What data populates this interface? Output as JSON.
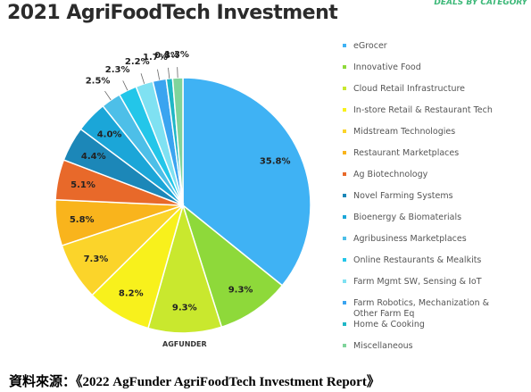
{
  "chart_data": {
    "type": "pie",
    "title": "2021 AgriFoodTech Investment",
    "subtitle": "DEALS BY CATEGORY",
    "categories": [
      "eGrocer",
      "Innovative Food",
      "Cloud Retail Infrastructure",
      "In-store Retail & Restaurant Tech",
      "Midstream Technologies",
      "Restaurant Marketplaces",
      "Ag Biotechnology",
      "Novel Farming Systems",
      "Bioenergy & Biomaterials",
      "Agribusiness Marketplaces",
      "Online Restaurants & Mealkits",
      "Farm Mgmt SW, Sensing & IoT",
      "Farm Robotics, Mechanization & Other Farm Eq",
      "Home & Cooking",
      "Miscellaneous"
    ],
    "values": [
      35.8,
      9.3,
      9.3,
      8.2,
      7.3,
      5.8,
      5.1,
      4.4,
      4.0,
      2.5,
      2.3,
      2.2,
      1.7,
      0.8,
      1.3
    ],
    "value_labels": [
      "35.8%",
      "9.3%",
      "9.3%",
      "8.2%",
      "7.3%",
      "5.8%",
      "5.1%",
      "4.4%",
      "4.0%",
      "2.5%",
      "2.3%",
      "2.2%",
      "1.7%",
      "0.8%",
      "1.3%"
    ],
    "colors": [
      "#3fb2f4",
      "#8ed93a",
      "#c9e82e",
      "#f8f11c",
      "#fbd42a",
      "#f9b41c",
      "#e8692a",
      "#1c87b8",
      "#1ba6d8",
      "#4dbfe8",
      "#23c6e9",
      "#7fe1f2",
      "#3aa4f0",
      "#1fb7c6",
      "#7fd49b"
    ],
    "logo": "AGFUNDER"
  },
  "source": "資料來源：《2022 AgFunder AgriFoodTech Investment Report》"
}
